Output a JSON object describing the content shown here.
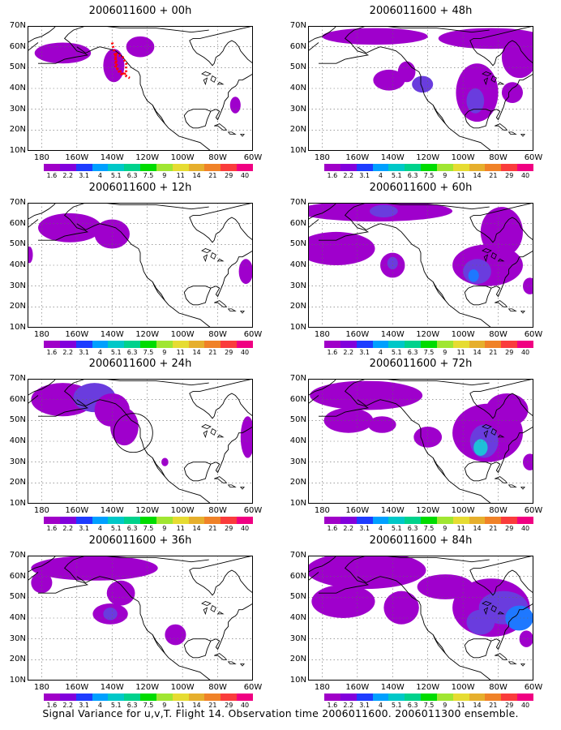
{
  "panels": [
    {
      "title": "2006011600 + 00h",
      "flight_track": true,
      "circle": false
    },
    {
      "title": "2006011600 + 48h",
      "flight_track": false,
      "circle": false
    },
    {
      "title": "2006011600 + 12h",
      "flight_track": false,
      "circle": false
    },
    {
      "title": "2006011600 + 60h",
      "flight_track": false,
      "circle": false
    },
    {
      "title": "2006011600 + 24h",
      "flight_track": false,
      "circle": true
    },
    {
      "title": "2006011600 + 72h",
      "flight_track": false,
      "circle": false
    },
    {
      "title": "2006011600 + 36h",
      "flight_track": false,
      "circle": false
    },
    {
      "title": "2006011600 + 84h",
      "flight_track": false,
      "circle": false
    }
  ],
  "lat_labels": [
    "70N",
    "60N",
    "50N",
    "40N",
    "30N",
    "20N",
    "10N"
  ],
  "lon_labels": [
    "180",
    "160W",
    "140W",
    "120W",
    "100W",
    "80W",
    "60W"
  ],
  "colorbar": {
    "labels": [
      "1.6",
      "2.2",
      "3.1",
      "4",
      "5.1",
      "6.3",
      "7.5",
      "9",
      "11",
      "14",
      "21",
      "29",
      "40"
    ],
    "colors": [
      "#a000c8",
      "#8200dc",
      "#1e3cff",
      "#00a0ff",
      "#00c8c8",
      "#00d28c",
      "#00dc00",
      "#a0e632",
      "#e6dc32",
      "#e6af2d",
      "#f08228",
      "#fa3c3c",
      "#f00082"
    ]
  },
  "footer": "Signal Variance for u,v,T. Flight 14. Observation time 2006011600. 2006011300 ensemble."
}
